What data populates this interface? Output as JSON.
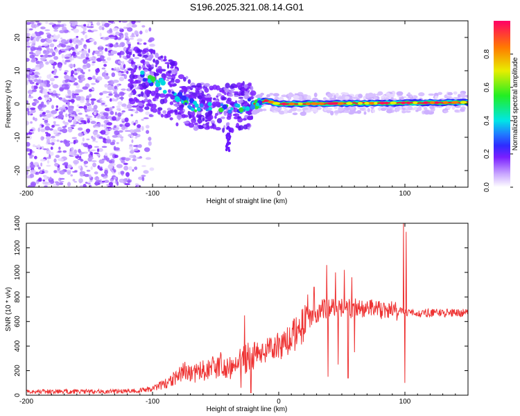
{
  "page_title": "S196.2025.321.08.14.G01",
  "chart_data": [
    {
      "type": "heatmap",
      "title": "S196.2025.321.08.14.G01",
      "xlabel": "Height of straight line (km)",
      "ylabel": "Frequency (Hz)",
      "xlim": [
        -200,
        150
      ],
      "ylim": [
        -25,
        25
      ],
      "x_ticks": [
        -200,
        -100,
        0,
        100
      ],
      "y_ticks": [
        -20,
        -10,
        0,
        10,
        20
      ],
      "trace_ridge": [
        {
          "x": -120,
          "y": 10
        },
        {
          "x": -100,
          "y": 7
        },
        {
          "x": -85,
          "y": 4
        },
        {
          "x": -75,
          "y": 1.5
        },
        {
          "x": -65,
          "y": -1
        },
        {
          "x": -55,
          "y": -0.5
        },
        {
          "x": -45,
          "y": -1
        },
        {
          "x": -35,
          "y": -1
        },
        {
          "x": -20,
          "y": 0
        },
        {
          "x": -10,
          "y": 1
        },
        {
          "x": 0,
          "y": 0
        },
        {
          "x": 150,
          "y": 0.5
        }
      ],
      "colorbar": {
        "label": "Normalized spectral amplitude",
        "range": [
          0,
          1
        ],
        "ticks": [
          "0.0",
          "0.2",
          "0.4",
          "0.6",
          "0.8"
        ]
      }
    },
    {
      "type": "line",
      "xlabel": "Height of straight line (km)",
      "ylabel": "SNR (10 * v/v)",
      "xlim": [
        -200,
        150
      ],
      "ylim": [
        0,
        1400
      ],
      "x_ticks": [
        -200,
        -100,
        0,
        100
      ],
      "y_ticks": [
        0,
        200,
        400,
        600,
        800,
        1000,
        1200,
        1400
      ],
      "series": [
        {
          "name": "SNR",
          "color": "#ee3333",
          "envelope": [
            {
              "x": -200,
              "y": 30
            },
            {
              "x": -120,
              "y": 30
            },
            {
              "x": -100,
              "y": 50
            },
            {
              "x": -85,
              "y": 120
            },
            {
              "x": -75,
              "y": 200
            },
            {
              "x": -65,
              "y": 180
            },
            {
              "x": -55,
              "y": 220
            },
            {
              "x": -45,
              "y": 250
            },
            {
              "x": -35,
              "y": 220
            },
            {
              "x": -25,
              "y": 320
            },
            {
              "x": -15,
              "y": 360
            },
            {
              "x": -5,
              "y": 380
            },
            {
              "x": 5,
              "y": 420
            },
            {
              "x": 15,
              "y": 520
            },
            {
              "x": 25,
              "y": 640
            },
            {
              "x": 35,
              "y": 700
            },
            {
              "x": 50,
              "y": 710
            },
            {
              "x": 70,
              "y": 700
            },
            {
              "x": 90,
              "y": 690
            },
            {
              "x": 100,
              "y": 680
            },
            {
              "x": 110,
              "y": 670
            },
            {
              "x": 150,
              "y": 670
            }
          ],
          "spikes": [
            {
              "x": -27,
              "y": 650
            },
            {
              "x": -22,
              "y": 20
            },
            {
              "x": -30,
              "y": 60
            },
            {
              "x": 23,
              "y": 820
            },
            {
              "x": 28,
              "y": 880
            },
            {
              "x": 38,
              "y": 1060
            },
            {
              "x": 39,
              "y": 150
            },
            {
              "x": 45,
              "y": 1000
            },
            {
              "x": 47,
              "y": 250
            },
            {
              "x": 52,
              "y": 1020
            },
            {
              "x": 55,
              "y": 140
            },
            {
              "x": 58,
              "y": 960
            },
            {
              "x": 60,
              "y": 350
            },
            {
              "x": 99,
              "y": 1400
            },
            {
              "x": 100,
              "y": 100
            },
            {
              "x": 101,
              "y": 1330
            }
          ]
        }
      ]
    }
  ]
}
